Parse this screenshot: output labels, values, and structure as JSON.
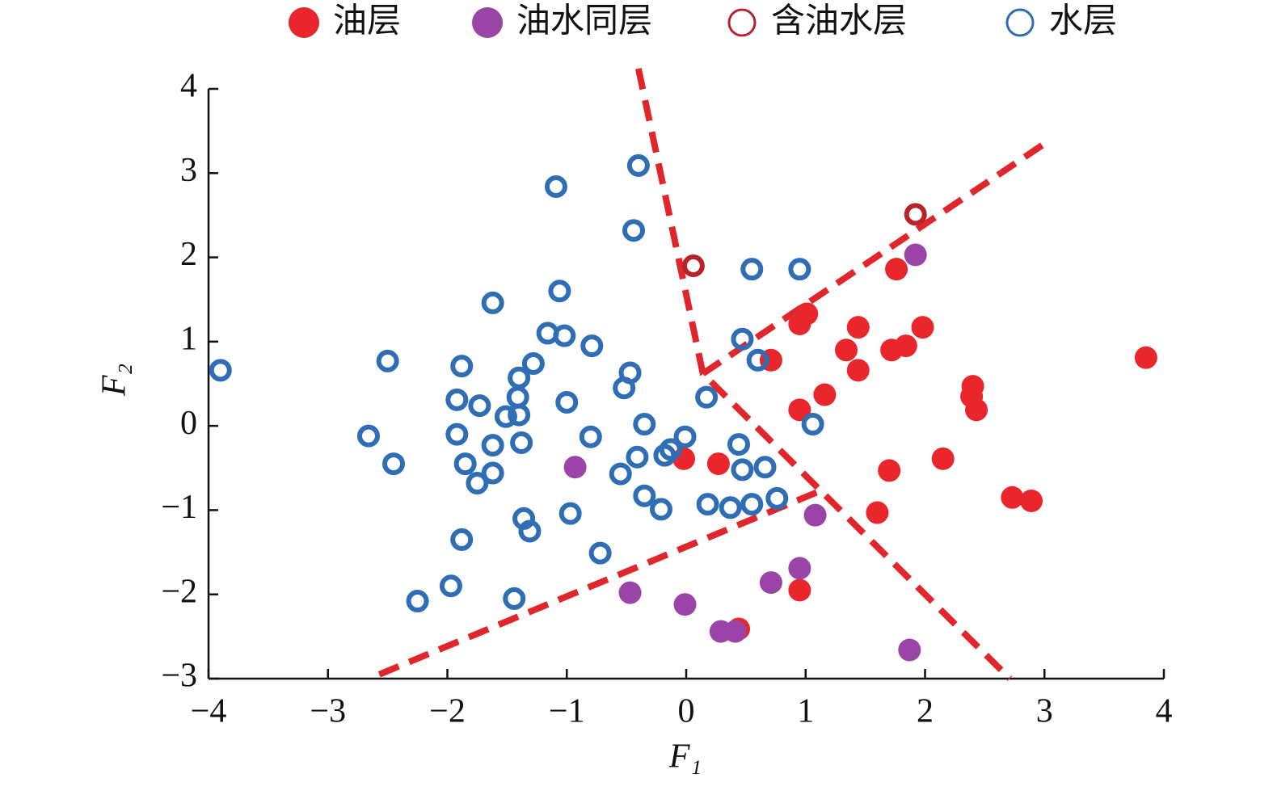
{
  "chart_data": {
    "type": "scatter",
    "x_label": "F₁",
    "y_label": "F₂",
    "xlim": [
      -4,
      4
    ],
    "ylim": [
      -3,
      4
    ],
    "xticks": [
      {
        "value": -4,
        "label": "−4"
      },
      {
        "value": -3,
        "label": "−3"
      },
      {
        "value": -2,
        "label": "−2"
      },
      {
        "value": -1,
        "label": "−1"
      },
      0,
      1,
      2,
      3,
      4
    ],
    "yticks": [
      {
        "value": -3,
        "label": "−3"
      },
      {
        "value": -2,
        "label": "−2"
      },
      {
        "value": -1,
        "label": "−1"
      },
      0,
      1,
      2,
      3,
      4
    ],
    "series": [
      {
        "name": "油层",
        "color": "#e8262b",
        "marker": "filled",
        "x": [
          -0.02,
          0.27,
          0.44,
          0.71,
          0.95,
          1.01,
          0.95,
          0.95,
          1.16,
          1.34,
          1.44,
          1.44,
          1.6,
          1.7,
          1.72,
          1.76,
          1.84,
          1.98,
          2.15,
          2.4,
          2.39,
          2.43,
          2.73,
          2.89,
          3.85
        ],
        "y": [
          -0.39,
          -0.45,
          -2.41,
          0.78,
          1.21,
          1.33,
          0.19,
          -1.95,
          0.37,
          0.9,
          1.17,
          0.66,
          -1.03,
          -0.53,
          0.9,
          1.86,
          0.95,
          1.17,
          -0.39,
          0.47,
          0.35,
          0.19,
          -0.85,
          -0.89,
          0.81
        ]
      },
      {
        "name": "油水同层",
        "color": "#9b44a8",
        "marker": "filled",
        "x": [
          -0.93,
          -0.47,
          -0.01,
          0.29,
          0.41,
          0.71,
          0.95,
          1.08,
          1.87,
          1.92
        ],
        "y": [
          -0.49,
          -1.98,
          -2.12,
          -2.44,
          -2.44,
          -1.86,
          -1.69,
          -1.06,
          -2.66,
          2.03
        ]
      },
      {
        "name": "含油水层",
        "color": "#b8232b",
        "marker": "open",
        "x": [
          0.06,
          1.92
        ],
        "y": [
          1.9,
          2.51
        ]
      },
      {
        "name": "水层",
        "color": "#2f6db5",
        "marker": "open",
        "x": [
          -3.9,
          -2.5,
          -2.66,
          -2.45,
          -2.25,
          -1.97,
          -1.88,
          -1.88,
          -1.92,
          -1.92,
          -1.85,
          -1.75,
          -1.73,
          -1.62,
          -1.62,
          -1.62,
          -1.51,
          -1.4,
          -1.41,
          -1.4,
          -1.38,
          -1.36,
          -1.31,
          -1.44,
          -1.28,
          -1.16,
          -1.09,
          -1.06,
          -1.02,
          -1.0,
          -0.97,
          -0.79,
          -0.8,
          -0.72,
          -0.55,
          -0.52,
          -0.47,
          -0.44,
          -0.4,
          -0.41,
          -0.35,
          -0.35,
          -0.21,
          -0.18,
          -0.13,
          -0.01,
          0.17,
          0.18,
          0.37,
          0.44,
          0.47,
          0.47,
          0.55,
          0.55,
          0.66,
          0.6,
          0.76,
          0.95,
          1.06
        ],
        "y": [
          0.66,
          0.77,
          -0.12,
          -0.45,
          -2.08,
          -1.9,
          -1.35,
          0.71,
          0.31,
          -0.1,
          -0.45,
          -0.68,
          0.24,
          1.46,
          -0.23,
          -0.56,
          0.11,
          0.57,
          0.34,
          0.13,
          -0.2,
          -1.1,
          -1.25,
          -2.05,
          0.74,
          1.1,
          2.84,
          1.6,
          1.07,
          0.28,
          -1.04,
          0.95,
          -0.13,
          -1.51,
          -0.57,
          0.45,
          0.63,
          2.32,
          3.09,
          -0.37,
          0.02,
          -0.83,
          -0.99,
          -0.35,
          -0.28,
          -0.13,
          0.34,
          -0.93,
          -0.97,
          -0.22,
          -0.52,
          1.03,
          1.86,
          -0.93,
          -0.49,
          0.78,
          -0.86,
          1.86,
          0.02
        ]
      }
    ],
    "boundaries": [
      {
        "x": [
          -0.4,
          0.14,
          2.71
        ],
        "y": [
          4.24,
          0.62,
          -3
        ]
      },
      {
        "x": [
          0.14,
          2.98
        ],
        "y": [
          0.62,
          3.33
        ]
      },
      {
        "x": [
          -2.57,
          1.16
        ],
        "y": [
          -2.95,
          -0.75
        ]
      }
    ],
    "boundary_color": "#e0262b",
    "legend": "top"
  }
}
